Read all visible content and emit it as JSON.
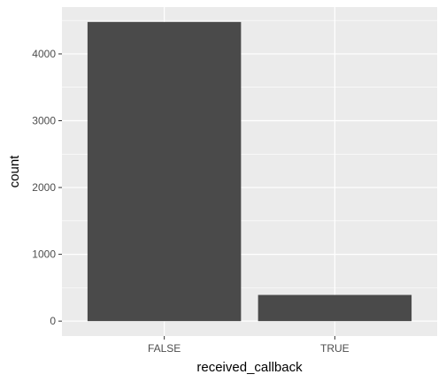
{
  "chart_data": {
    "type": "bar",
    "categories": [
      "FALSE",
      "TRUE"
    ],
    "values": [
      4478,
      392
    ],
    "title": "",
    "xlabel": "received_callback",
    "ylabel": "count",
    "ylim": [
      -223,
      4701
    ],
    "yticks": [
      0,
      1000,
      2000,
      3000,
      4000
    ],
    "minor_yticks": [
      500,
      1500,
      2500,
      3500,
      4500
    ],
    "grid": true,
    "legend": "none"
  },
  "colors": {
    "panel_background": "#ebebeb",
    "grid_major": "#ffffff",
    "bar_fill": "#4a4a4a",
    "tick_text": "#4d4d4d",
    "tick_mark": "#333333",
    "title_text": "#000000"
  }
}
